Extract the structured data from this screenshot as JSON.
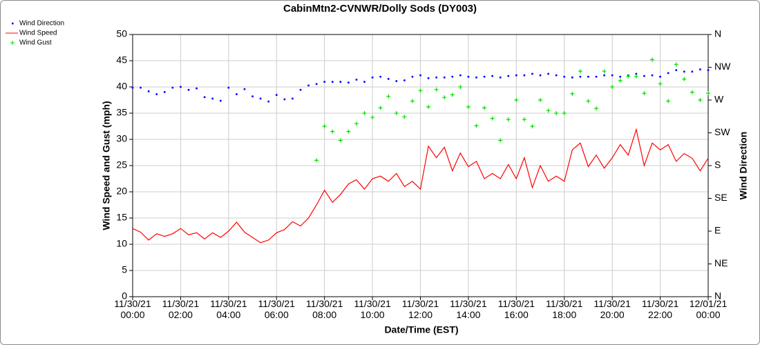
{
  "chart_data": {
    "type": "line",
    "title": "CabinMtn2-CVNWR/Dolly Sods (DY003)",
    "x_label": "Date/Time (EST)",
    "y_label": "Wind Speed and Gust (mph)",
    "y2_label": "Wind Direction",
    "x": [
      "11/30/21 00:00",
      "11/30/21 00:20",
      "11/30/21 00:40",
      "11/30/21 01:00",
      "11/30/21 01:20",
      "11/30/21 01:40",
      "11/30/21 02:00",
      "11/30/21 02:20",
      "11/30/21 02:40",
      "11/30/21 03:00",
      "11/30/21 03:20",
      "11/30/21 03:40",
      "11/30/21 04:00",
      "11/30/21 04:20",
      "11/30/21 04:40",
      "11/30/21 05:00",
      "11/30/21 05:20",
      "11/30/21 05:40",
      "11/30/21 06:00",
      "11/30/21 06:20",
      "11/30/21 06:40",
      "11/30/21 07:00",
      "11/30/21 07:20",
      "11/30/21 07:40",
      "11/30/21 08:00",
      "11/30/21 08:20",
      "11/30/21 08:40",
      "11/30/21 09:00",
      "11/30/21 09:20",
      "11/30/21 09:40",
      "11/30/21 10:00",
      "11/30/21 10:20",
      "11/30/21 10:40",
      "11/30/21 11:00",
      "11/30/21 11:20",
      "11/30/21 11:40",
      "11/30/21 12:00",
      "11/30/21 12:20",
      "11/30/21 12:40",
      "11/30/21 13:00",
      "11/30/21 13:20",
      "11/30/21 13:40",
      "11/30/21 14:00",
      "11/30/21 14:20",
      "11/30/21 14:40",
      "11/30/21 15:00",
      "11/30/21 15:20",
      "11/30/21 15:40",
      "11/30/21 16:00",
      "11/30/21 16:20",
      "11/30/21 16:40",
      "11/30/21 17:00",
      "11/30/21 17:20",
      "11/30/21 17:40",
      "11/30/21 18:00",
      "11/30/21 18:20",
      "11/30/21 18:40",
      "11/30/21 19:00",
      "11/30/21 19:20",
      "11/30/21 19:40",
      "11/30/21 20:00",
      "11/30/21 20:20",
      "11/30/21 20:40",
      "11/30/21 21:00",
      "11/30/21 21:20",
      "11/30/21 21:40",
      "11/30/21 22:00",
      "11/30/21 22:20",
      "11/30/21 22:40",
      "11/30/21 23:00",
      "11/30/21 23:20",
      "11/30/21 23:40",
      "12/01/21 00:00"
    ],
    "series": [
      {
        "name": "Wind Direction",
        "color": "#0000ff",
        "marker": "dot",
        "axis": "y2",
        "values": [
          287,
          287,
          282,
          278,
          281,
          287,
          288,
          284,
          286,
          274,
          272,
          269,
          287,
          278,
          285,
          275,
          272,
          268,
          277,
          271,
          272,
          284,
          290,
          292,
          295,
          295,
          295,
          294,
          298,
          295,
          301,
          302,
          299,
          296,
          297,
          302,
          304,
          300,
          301,
          301,
          302,
          304,
          302,
          301,
          302,
          303,
          301,
          303,
          304,
          304,
          306,
          304,
          306,
          304,
          302,
          301,
          302,
          302,
          302,
          304,
          304,
          302,
          304,
          306,
          303,
          304,
          302,
          307,
          311,
          309,
          309,
          312,
          311
        ]
      },
      {
        "name": "Wind Speed",
        "color": "#ff0000",
        "marker": "line",
        "values": [
          13,
          12.3,
          10.8,
          12,
          11.5,
          12,
          13,
          11.8,
          12.2,
          11,
          12.2,
          11.3,
          12.5,
          14.2,
          12.3,
          11.3,
          10.3,
          10.8,
          12.2,
          12.8,
          14.3,
          13.5,
          15,
          17.5,
          20.3,
          18,
          19.5,
          21.5,
          22.3,
          20.5,
          22.5,
          23,
          22,
          23.5,
          21,
          22,
          20.5,
          28.7,
          26.5,
          28.5,
          24,
          27.4,
          24.8,
          25.8,
          22.5,
          23.5,
          22.5,
          25.2,
          22.5,
          26.5,
          20.8,
          25,
          22,
          23,
          22,
          28,
          29.3,
          24.8,
          27,
          24.5,
          26.5,
          29,
          27,
          31.9,
          25,
          29.3,
          28,
          29,
          25.8,
          27.3,
          26.4,
          24,
          26.4
        ]
      },
      {
        "name": "Wind Gust",
        "color": "#00dd00",
        "marker": "plus",
        "values": [
          null,
          null,
          null,
          null,
          null,
          null,
          null,
          null,
          null,
          null,
          null,
          null,
          null,
          null,
          null,
          null,
          null,
          null,
          null,
          null,
          null,
          null,
          null,
          26,
          32.5,
          31.5,
          29.8,
          31.5,
          33,
          35,
          34.2,
          36,
          38.2,
          35,
          34.3,
          37.3,
          39.3,
          36.2,
          39.5,
          38,
          38.5,
          40,
          36.2,
          32.6,
          36,
          34,
          29.8,
          33.8,
          37.5,
          33.8,
          32.5,
          37.5,
          35.5,
          35,
          35,
          38.7,
          43,
          37.3,
          35.9,
          43,
          40,
          41.2,
          42,
          42,
          38.8,
          45.2,
          40.6,
          37.3,
          44.3,
          41.5,
          39,
          37.5,
          38.8
        ]
      }
    ],
    "xlim": [
      "11/30/21 00:00",
      "12/01/21 00:00"
    ],
    "xticks": [
      "11/30/21 00:00",
      "11/30/21 02:00",
      "11/30/21 04:00",
      "11/30/21 06:00",
      "11/30/21 08:00",
      "11/30/21 10:00",
      "11/30/21 12:00",
      "11/30/21 14:00",
      "11/30/21 16:00",
      "11/30/21 18:00",
      "11/30/21 20:00",
      "11/30/21 22:00",
      "12/01/21 00:00"
    ],
    "ylim": [
      0,
      50
    ],
    "yticks": [
      0,
      5,
      10,
      15,
      20,
      25,
      30,
      35,
      40,
      45,
      50
    ],
    "y2lim": [
      0,
      360
    ],
    "y2ticks": [
      {
        "value": 0,
        "label": "N"
      },
      {
        "value": 45,
        "label": "NE"
      },
      {
        "value": 90,
        "label": "E"
      },
      {
        "value": 135,
        "label": "SE"
      },
      {
        "value": 180,
        "label": "S"
      },
      {
        "value": 225,
        "label": "SW"
      },
      {
        "value": 270,
        "label": "W"
      },
      {
        "value": 315,
        "label": "NW"
      },
      {
        "value": 360,
        "label": "N"
      }
    ],
    "grid": true,
    "legend": "top-left"
  }
}
